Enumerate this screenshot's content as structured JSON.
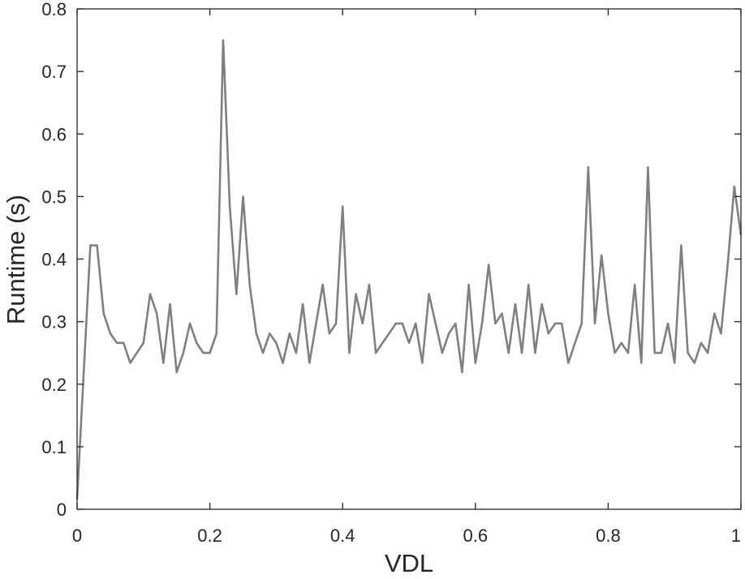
{
  "chart_data": {
    "type": "line",
    "xlabel": "VDL",
    "ylabel": "Runtime (s)",
    "xlim": [
      0,
      1
    ],
    "ylim": [
      0,
      0.8
    ],
    "grid": false,
    "box": true,
    "line_color": "#808080",
    "axis_color": "#262626",
    "x_ticks": [
      0,
      0.2,
      0.4,
      0.6,
      0.8,
      1
    ],
    "x_tick_labels": [
      "0",
      "0.2",
      "0.4",
      "0.6",
      "0.8",
      "1"
    ],
    "y_ticks": [
      0,
      0.1,
      0.2,
      0.3,
      0.4,
      0.5,
      0.6,
      0.7,
      0.8
    ],
    "y_tick_labels": [
      "0",
      "0.1",
      "0.2",
      "0.3",
      "0.4",
      "0.5",
      "0.6",
      "0.7",
      "0.8"
    ],
    "series": [
      {
        "x": [
          0,
          0.01,
          0.02,
          0.03,
          0.04,
          0.05,
          0.06,
          0.07,
          0.08,
          0.09,
          0.1,
          0.11,
          0.12,
          0.13,
          0.14,
          0.15,
          0.16,
          0.17,
          0.18,
          0.19,
          0.2,
          0.21,
          0.22,
          0.23,
          0.24,
          0.25,
          0.26,
          0.27,
          0.28,
          0.29,
          0.3,
          0.31,
          0.32,
          0.33,
          0.34,
          0.35,
          0.36,
          0.37,
          0.38,
          0.39,
          0.4,
          0.41,
          0.42,
          0.43,
          0.44,
          0.45,
          0.46,
          0.47,
          0.48,
          0.49,
          0.5,
          0.51,
          0.52,
          0.53,
          0.54,
          0.55,
          0.56,
          0.57,
          0.58,
          0.59,
          0.6,
          0.61,
          0.62,
          0.63,
          0.64,
          0.65,
          0.66,
          0.67,
          0.68,
          0.69,
          0.7,
          0.71,
          0.72,
          0.73,
          0.74,
          0.75,
          0.76,
          0.77,
          0.78,
          0.79,
          0.8,
          0.81,
          0.82,
          0.83,
          0.84,
          0.85,
          0.86,
          0.87,
          0.88,
          0.89,
          0.9,
          0.91,
          0.92,
          0.93,
          0.94,
          0.95,
          0.96,
          0.97,
          0.98,
          0.99,
          1
        ],
        "values": [
          0.016,
          0.219,
          0.422,
          0.422,
          0.313,
          0.281,
          0.266,
          0.266,
          0.234,
          0.25,
          0.266,
          0.344,
          0.313,
          0.234,
          0.328,
          0.219,
          0.25,
          0.297,
          0.266,
          0.25,
          0.25,
          0.281,
          0.75,
          0.484,
          0.344,
          0.5,
          0.359,
          0.281,
          0.25,
          0.281,
          0.266,
          0.234,
          0.281,
          0.25,
          0.328,
          0.234,
          0.297,
          0.359,
          0.281,
          0.297,
          0.484,
          0.25,
          0.344,
          0.297,
          0.359,
          0.25,
          0.266,
          0.281,
          0.297,
          0.297,
          0.266,
          0.297,
          0.234,
          0.344,
          0.297,
          0.25,
          0.281,
          0.297,
          0.219,
          0.359,
          0.234,
          0.297,
          0.391,
          0.297,
          0.313,
          0.25,
          0.328,
          0.25,
          0.359,
          0.25,
          0.328,
          0.281,
          0.297,
          0.297,
          0.234,
          0.266,
          0.297,
          0.547,
          0.297,
          0.406,
          0.313,
          0.25,
          0.266,
          0.25,
          0.359,
          0.234,
          0.547,
          0.25,
          0.25,
          0.297,
          0.234,
          0.422,
          0.25,
          0.234,
          0.266,
          0.25,
          0.313,
          0.281,
          0.391,
          0.516,
          0.438
        ]
      }
    ]
  }
}
